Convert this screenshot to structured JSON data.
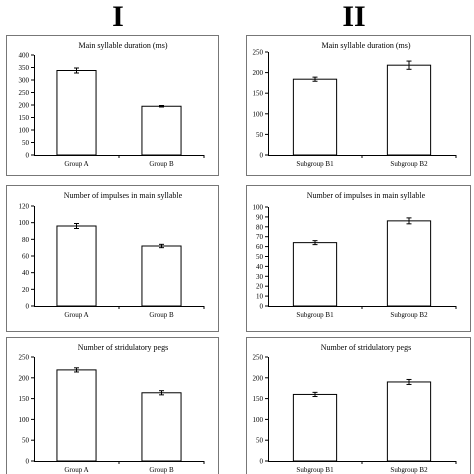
{
  "columns": {
    "left": "I",
    "right": "II"
  },
  "chart_data": [
    {
      "type": "bar",
      "title": "Main syllable duration (ms)",
      "categories": [
        "Group A",
        "Group B"
      ],
      "values": [
        338,
        195
      ],
      "errors": [
        10,
        3
      ],
      "ylim": [
        0,
        400
      ],
      "yticks": [
        0,
        50,
        100,
        150,
        200,
        250,
        300,
        350,
        400
      ],
      "grid": false
    },
    {
      "type": "bar",
      "title": "Main syllable duration (ms)",
      "categories": [
        "Subgroup B1",
        "Subgroup B2"
      ],
      "values": [
        184,
        218
      ],
      "errors": [
        5,
        10
      ],
      "ylim": [
        0,
        250
      ],
      "yticks": [
        0,
        50,
        100,
        150,
        200,
        250
      ],
      "grid": false
    },
    {
      "type": "bar",
      "title": "Number of impulses in main syllable",
      "categories": [
        "Group A",
        "Group B"
      ],
      "values": [
        96,
        72
      ],
      "errors": [
        3,
        2
      ],
      "ylim": [
        0,
        120
      ],
      "yticks": [
        0,
        20,
        40,
        60,
        80,
        100,
        120
      ],
      "grid": false
    },
    {
      "type": "bar",
      "title": "Number of impulses in main syllable",
      "categories": [
        "Subgroup B1",
        "Subgroup B2"
      ],
      "values": [
        64,
        86
      ],
      "errors": [
        2,
        3
      ],
      "ylim": [
        0,
        100
      ],
      "yticks": [
        0,
        10,
        20,
        30,
        40,
        50,
        60,
        70,
        80,
        90,
        100
      ],
      "grid": false
    },
    {
      "type": "bar",
      "title": "Number of stridulatory pegs",
      "categories": [
        "Group A",
        "Group B"
      ],
      "values": [
        219,
        164
      ],
      "errors": [
        5,
        5
      ],
      "ylim": [
        0,
        250
      ],
      "yticks": [
        0,
        50,
        100,
        150,
        200,
        250
      ],
      "grid": false
    },
    {
      "type": "bar",
      "title": "Number of stridulatory pegs",
      "categories": [
        "Subgroup B1",
        "Subgroup B2"
      ],
      "values": [
        160,
        190
      ],
      "errors": [
        5,
        6
      ],
      "ylim": [
        0,
        250
      ],
      "yticks": [
        0,
        50,
        100,
        150,
        200,
        250
      ],
      "grid": false
    }
  ]
}
